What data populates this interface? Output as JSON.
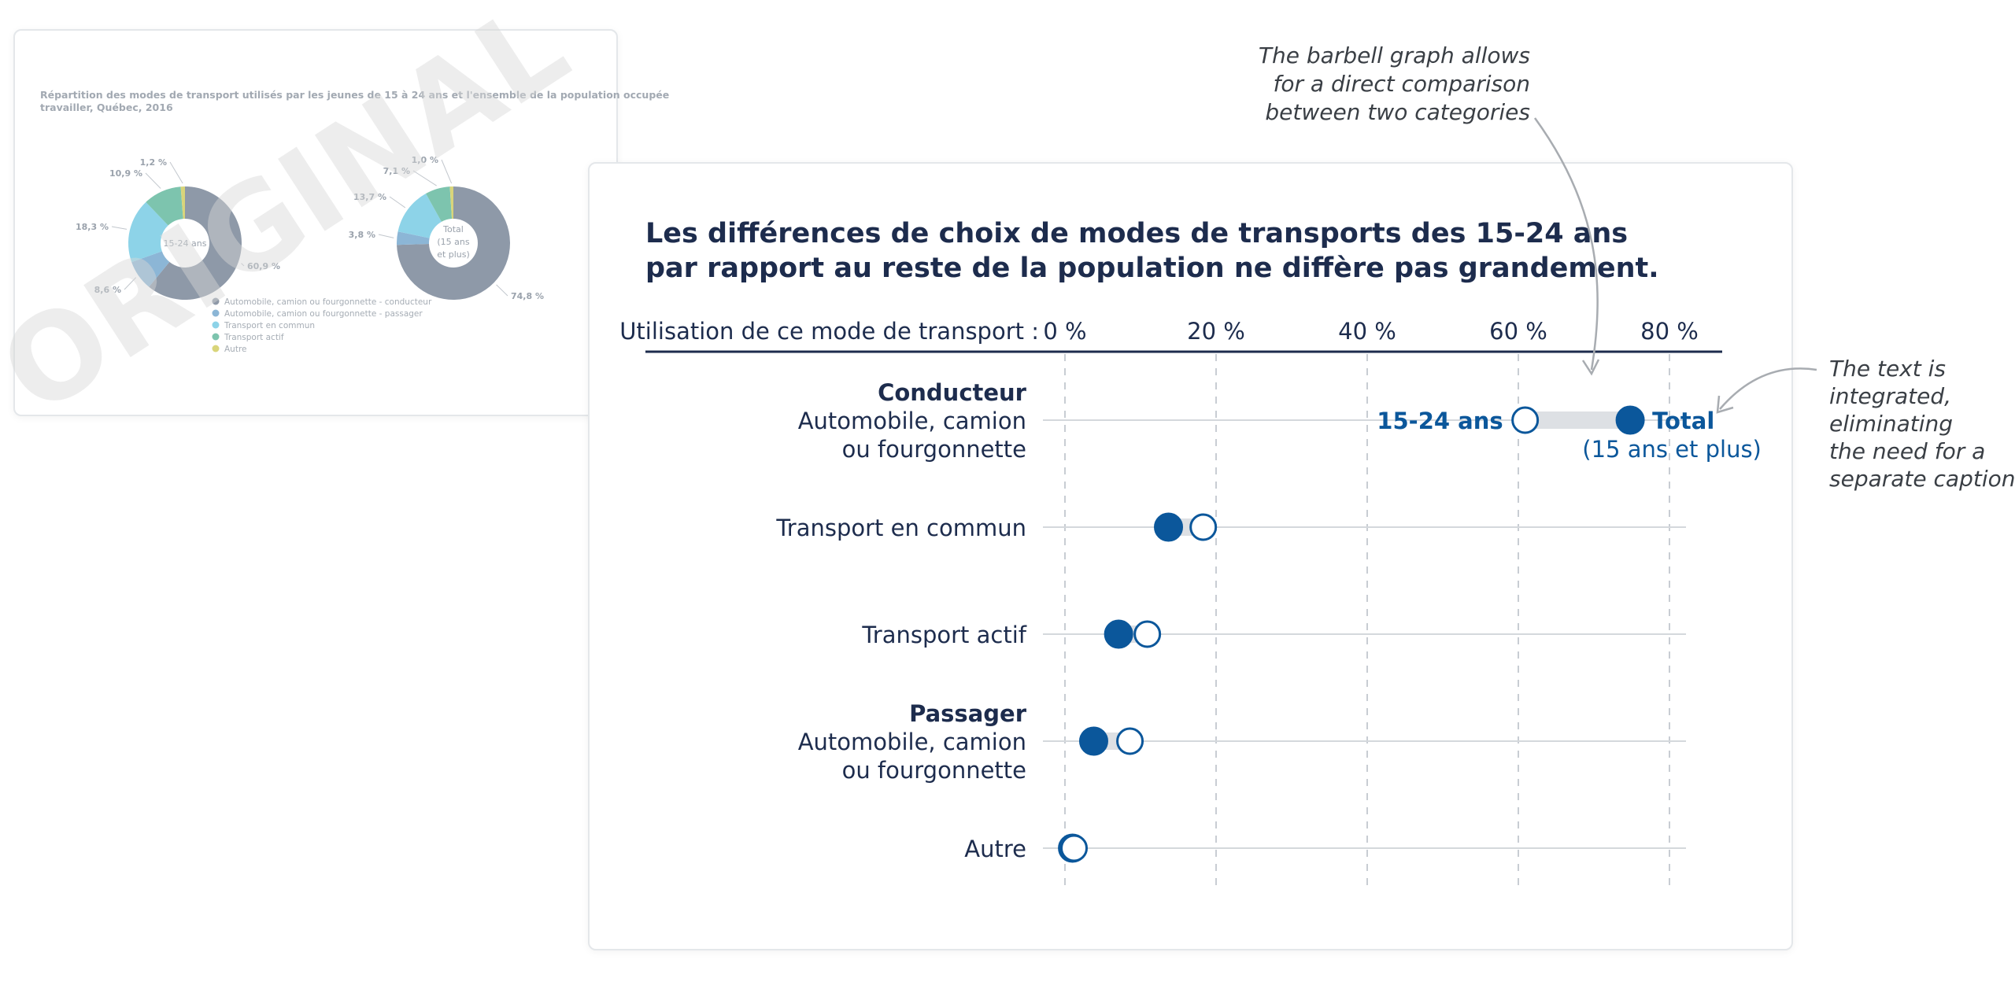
{
  "original": {
    "watermark": "ORIGINAL",
    "title_lines": [
      "Répartition des modes de transport utilisés par les jeunes de 15 à 24 ans et l'ensemble de la population occupée",
      "travailler, Québec, 2016"
    ],
    "donut_youth": {
      "center_label": "15-24 ans",
      "slices": [
        {
          "value": 60.9,
          "label": "60,9 %",
          "color": "#8e99a8"
        },
        {
          "value": 8.6,
          "label": "8,6 %",
          "color": "#8cb6d6"
        },
        {
          "value": 18.3,
          "label": "18,3 %",
          "color": "#8dd3e8"
        },
        {
          "value": 10.9,
          "label": "10,9 %",
          "color": "#7dc4ae"
        },
        {
          "value": 1.2,
          "label": "1,2 %",
          "color": "#d9d57a"
        }
      ]
    },
    "donut_total": {
      "center_lines": [
        "Total",
        "(15 ans",
        "et plus)"
      ],
      "slices": [
        {
          "value": 74.8,
          "label": "74,8 %",
          "color": "#8e99a8"
        },
        {
          "value": 3.8,
          "label": "3,8 %",
          "color": "#8cb6d6"
        },
        {
          "value": 13.7,
          "label": "13,7 %",
          "color": "#8dd3e8"
        },
        {
          "value": 7.1,
          "label": "7,1 %",
          "color": "#7dc4ae"
        },
        {
          "value": 1.0,
          "label": "1,0 %",
          "color": "#d9d57a"
        }
      ]
    },
    "legend": [
      {
        "label": "Automobile, camion ou fourgonnette - conducteur",
        "color": "#8e99a8"
      },
      {
        "label": "Automobile, camion ou fourgonnette - passager",
        "color": "#8cb6d6"
      },
      {
        "label": "Transport en commun",
        "color": "#8dd3e8"
      },
      {
        "label": "Transport actif",
        "color": "#7dc4ae"
      },
      {
        "label": "Autre",
        "color": "#d9d57a"
      }
    ]
  },
  "chart_data": {
    "type": "barbell",
    "title_lines": [
      "Les différences de choix de modes de transports des 15-24 ans",
      "par rapport au reste de la population ne diffère pas grandement."
    ],
    "axis_label": "Utilisation de ce mode de transport :",
    "ticks": [
      "0 %",
      "20 %",
      "40 %",
      "60 %",
      "80 %"
    ],
    "tick_values": [
      0,
      20,
      40,
      60,
      80
    ],
    "xlim": [
      0,
      82
    ],
    "colors": {
      "accent": "#0b579b",
      "text": "#1d2c4d",
      "bar": "#dde0e4",
      "grid": "#c8cdd3"
    },
    "series": [
      {
        "name": "15-24 ans",
        "marker": "open"
      },
      {
        "name": "Total",
        "name_sub": "(15 ans et plus)",
        "marker": "filled"
      }
    ],
    "categories": [
      {
        "bold": "Conducteur",
        "lines": [
          "Automobile, camion",
          "ou fourgonnette"
        ],
        "youth": 60.9,
        "total": 74.8
      },
      {
        "bold": "",
        "lines": [
          "Transport en commun"
        ],
        "youth": 18.3,
        "total": 13.7
      },
      {
        "bold": "",
        "lines": [
          "Transport actif"
        ],
        "youth": 10.9,
        "total": 7.1
      },
      {
        "bold": "Passager",
        "lines": [
          "Automobile, camion",
          "ou fourgonnette"
        ],
        "youth": 8.6,
        "total": 3.8
      },
      {
        "bold": "",
        "lines": [
          "Autre"
        ],
        "youth": 1.2,
        "total": 1.0
      }
    ]
  },
  "annotations": {
    "top_note": [
      "The barbell graph allows",
      "for a direct comparison",
      "between two categories"
    ],
    "right_note": [
      "The text is",
      "integrated,",
      "eliminating",
      "the need for a",
      "separate caption"
    ]
  }
}
